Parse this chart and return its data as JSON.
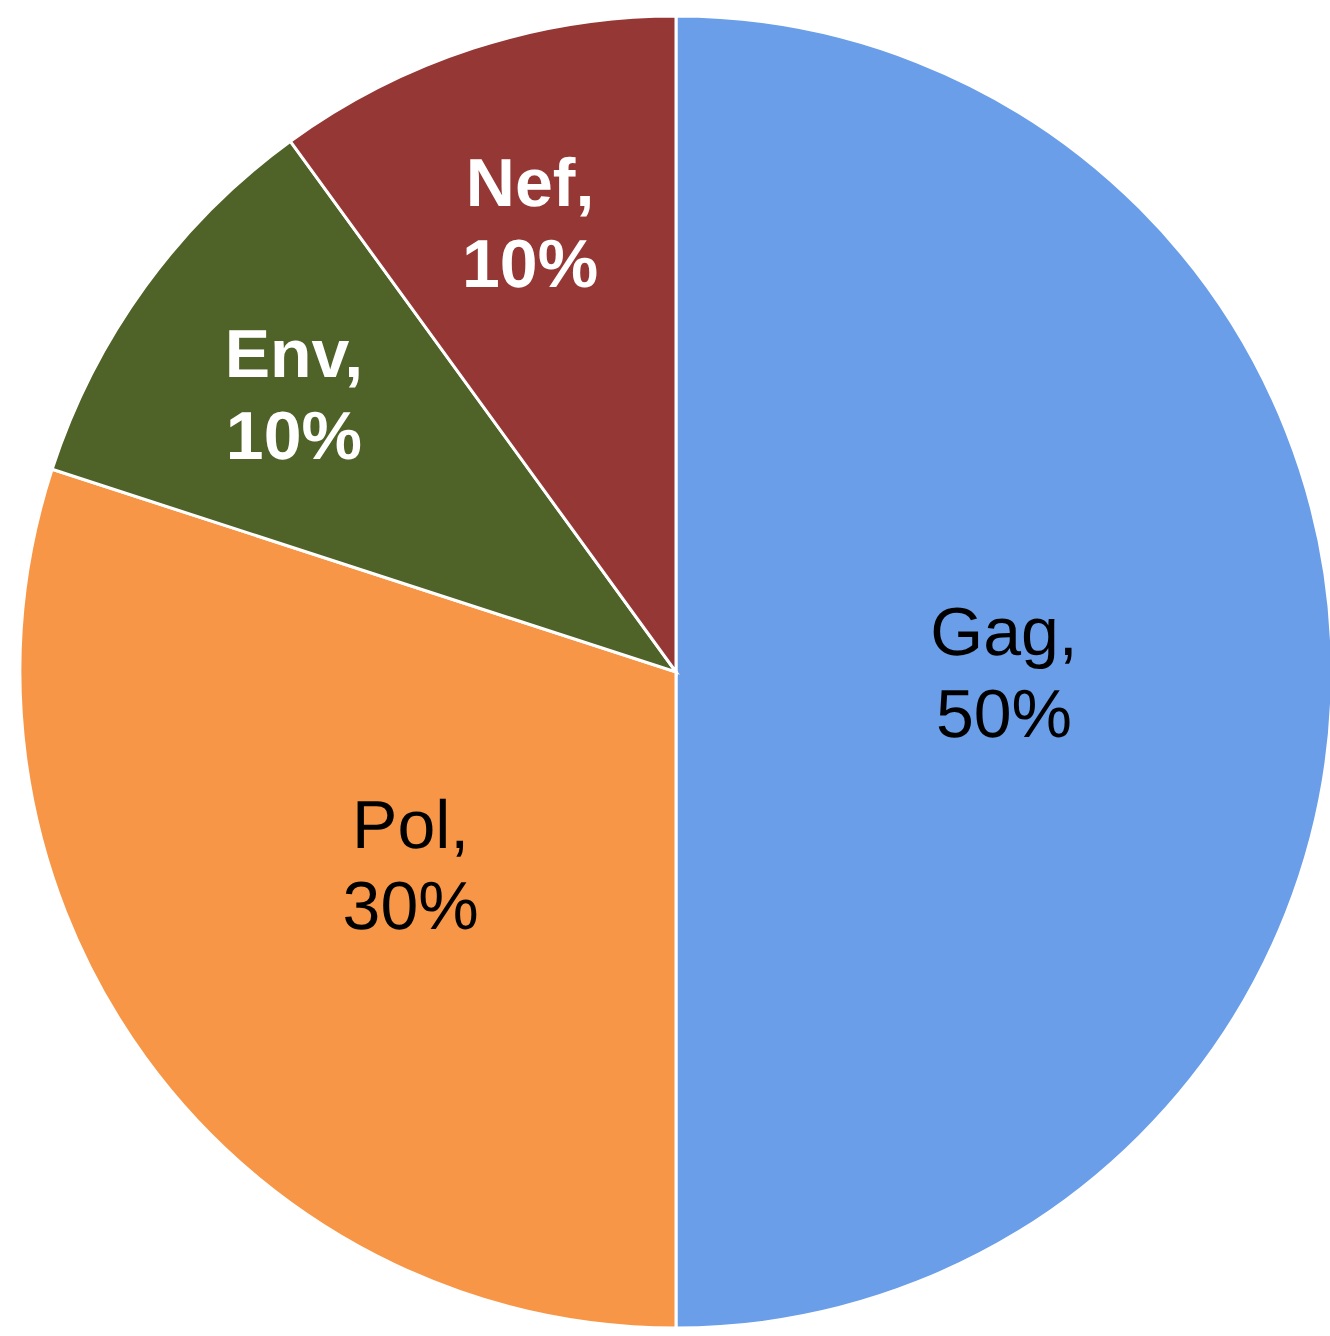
{
  "chart_data": {
    "type": "pie",
    "categories": [
      "Gag",
      "Pol",
      "Env",
      "Nef"
    ],
    "values": [
      50,
      30,
      10,
      10
    ],
    "colors": [
      "#6a9ee8",
      "#f79646",
      "#4f6228",
      "#953735"
    ],
    "value_labels": [
      ", 50%",
      ", 30%",
      ", 10%",
      ", 10%"
    ]
  }
}
